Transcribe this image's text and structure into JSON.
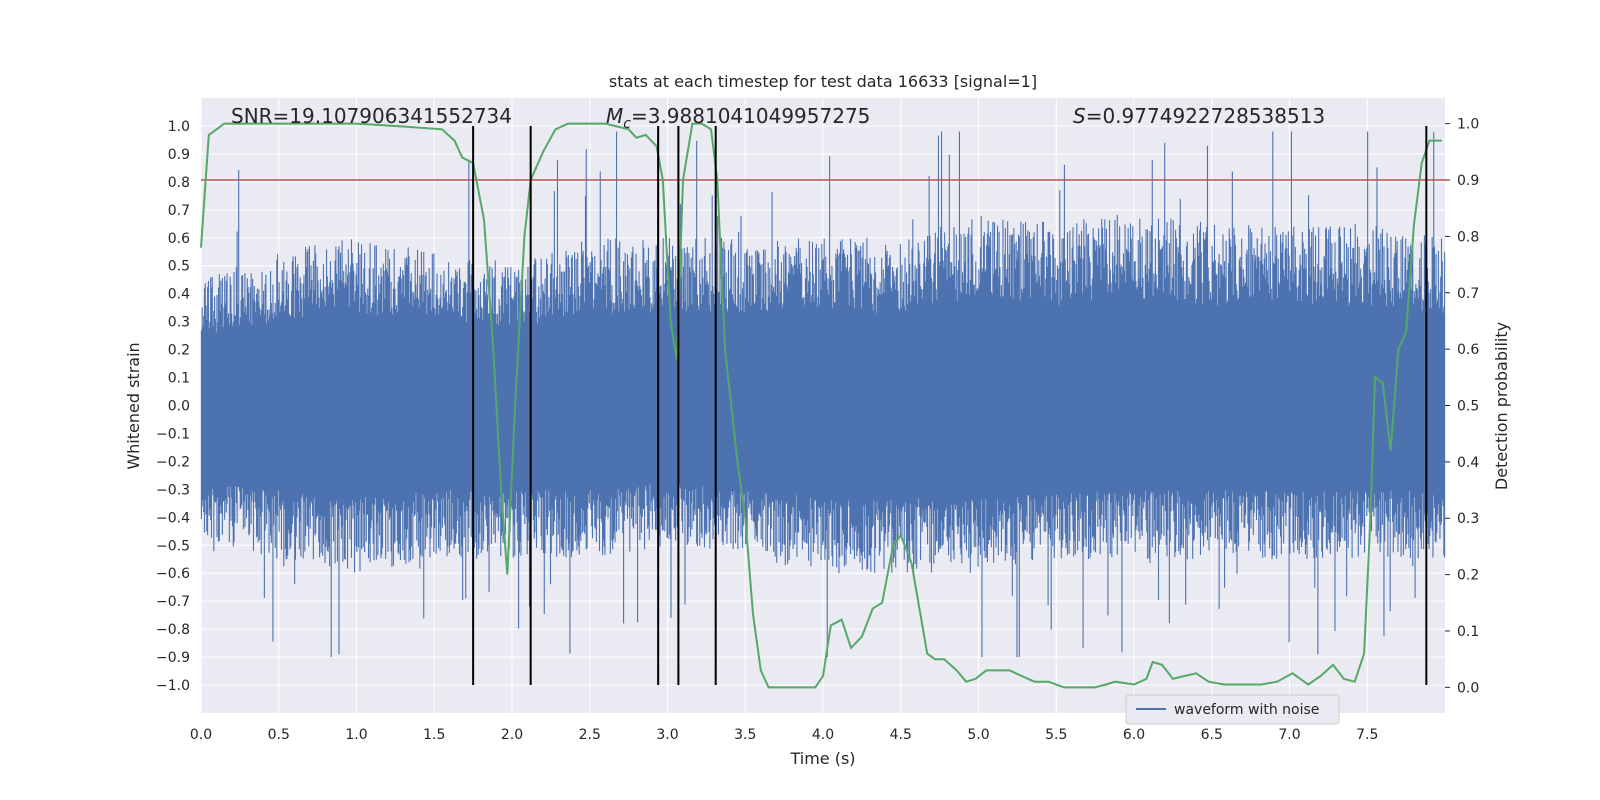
{
  "chart_data": {
    "type": "line",
    "title": "stats at each timestep for test data 16633 [signal=1]",
    "xlabel": "Time (s)",
    "ylabel": "Whitened strain",
    "y2label": "Detection probability",
    "xlim": [
      0,
      8
    ],
    "ylim": [
      -1.1,
      1.1
    ],
    "y2lim": [
      -0.0455,
      1.0455
    ],
    "grid": true,
    "legend_position": "lower-right",
    "x_ticks": [
      "0.0",
      "0.5",
      "1.0",
      "1.5",
      "2.0",
      "2.5",
      "3.0",
      "3.5",
      "4.0",
      "4.5",
      "5.0",
      "5.5",
      "6.0",
      "6.5",
      "7.0",
      "7.5"
    ],
    "y_ticks": [
      "1.0",
      "0.9",
      "0.8",
      "0.7",
      "0.6",
      "0.5",
      "0.4",
      "0.3",
      "0.2",
      "0.1",
      "0.0",
      "−0.1",
      "−0.2",
      "−0.3",
      "−0.4",
      "−0.5",
      "−0.6",
      "−0.7",
      "−0.8",
      "−0.9",
      "−1.0"
    ],
    "y2_ticks": [
      "1.0",
      "0.9",
      "0.8",
      "0.7",
      "0.6",
      "0.5",
      "0.4",
      "0.3",
      "0.2",
      "0.1",
      "0.0"
    ],
    "annotations": {
      "snr": "SNR=19.107906341552734",
      "mc_symbol": "M",
      "mc_sub": "c",
      "mc_value": "=3.9881041049957275",
      "s_symbol": "S",
      "s_value": "=0.9774922728538513"
    },
    "threshold": {
      "y2": 0.9,
      "color": "#c44e52"
    },
    "vertical_lines": {
      "x": [
        1.75,
        2.12,
        2.94,
        3.07,
        3.31,
        7.88
      ],
      "y_from": -1.0,
      "y_to": 1.0,
      "color": "#000000"
    },
    "series": [
      {
        "name": "waveform with noise",
        "color": "#4c72b0",
        "axis": "left",
        "samples": 1600,
        "envelope": {
          "x": [
            0,
            0.5,
            1.0,
            1.5,
            2.0,
            2.5,
            3.0,
            3.5,
            4.0,
            4.5,
            5.0,
            5.5,
            6.0,
            6.5,
            7.0,
            7.5,
            8.0
          ],
          "upper": [
            0.45,
            0.55,
            0.6,
            0.55,
            0.5,
            0.6,
            0.6,
            0.6,
            0.6,
            0.6,
            0.7,
            0.65,
            0.7,
            0.65,
            0.65,
            0.65,
            0.6
          ],
          "lower": [
            -0.5,
            -0.55,
            -0.6,
            -0.55,
            -0.55,
            -0.55,
            -0.5,
            -0.55,
            -0.6,
            -0.6,
            -0.6,
            -0.55,
            -0.55,
            -0.55,
            -0.55,
            -0.55,
            -0.55
          ]
        }
      },
      {
        "name": "",
        "color": "#55a868",
        "axis": "right",
        "x": [
          0.0,
          0.05,
          0.1,
          0.15,
          0.2,
          0.3,
          0.5,
          0.8,
          1.0,
          1.3,
          1.55,
          1.63,
          1.68,
          1.75,
          1.82,
          1.88,
          1.93,
          1.97,
          2.02,
          2.08,
          2.12,
          2.2,
          2.28,
          2.36,
          2.45,
          2.6,
          2.75,
          2.8,
          2.86,
          2.93,
          2.97,
          3.02,
          3.06,
          3.1,
          3.16,
          3.22,
          3.28,
          3.32,
          3.37,
          3.45,
          3.5,
          3.55,
          3.6,
          3.65,
          3.75,
          3.85,
          3.95,
          4.0,
          4.05,
          4.12,
          4.18,
          4.25,
          4.32,
          4.38,
          4.45,
          4.5,
          4.57,
          4.62,
          4.67,
          4.72,
          4.78,
          4.86,
          4.92,
          4.98,
          5.05,
          5.12,
          5.2,
          5.28,
          5.36,
          5.45,
          5.55,
          5.65,
          5.75,
          5.82,
          5.88,
          6.0,
          6.08,
          6.12,
          6.18,
          6.25,
          6.32,
          6.4,
          6.48,
          6.58,
          6.7,
          6.82,
          6.92,
          7.02,
          7.12,
          7.2,
          7.28,
          7.35,
          7.42,
          7.48,
          7.52,
          7.55,
          7.6,
          7.65,
          7.7,
          7.75,
          7.8,
          7.85,
          7.9,
          7.98
        ],
        "y": [
          0.78,
          0.98,
          0.99,
          1.0,
          1.0,
          1.0,
          1.0,
          1.0,
          1.0,
          0.995,
          0.99,
          0.97,
          0.94,
          0.93,
          0.83,
          0.6,
          0.35,
          0.2,
          0.5,
          0.8,
          0.9,
          0.95,
          0.99,
          1.0,
          1.0,
          1.0,
          0.99,
          0.975,
          0.98,
          0.96,
          0.9,
          0.65,
          0.58,
          0.9,
          1.0,
          1.0,
          0.99,
          0.9,
          0.6,
          0.4,
          0.3,
          0.13,
          0.03,
          0.0,
          0.0,
          0.0,
          0.0,
          0.02,
          0.11,
          0.12,
          0.07,
          0.09,
          0.14,
          0.15,
          0.25,
          0.27,
          0.22,
          0.14,
          0.06,
          0.05,
          0.05,
          0.03,
          0.01,
          0.015,
          0.03,
          0.03,
          0.03,
          0.02,
          0.01,
          0.01,
          0.0,
          0.0,
          0.0,
          0.005,
          0.01,
          0.005,
          0.015,
          0.045,
          0.04,
          0.015,
          0.02,
          0.025,
          0.01,
          0.005,
          0.005,
          0.005,
          0.01,
          0.025,
          0.005,
          0.02,
          0.04,
          0.015,
          0.01,
          0.06,
          0.3,
          0.55,
          0.54,
          0.42,
          0.6,
          0.63,
          0.82,
          0.93,
          0.97,
          0.97
        ]
      }
    ]
  }
}
